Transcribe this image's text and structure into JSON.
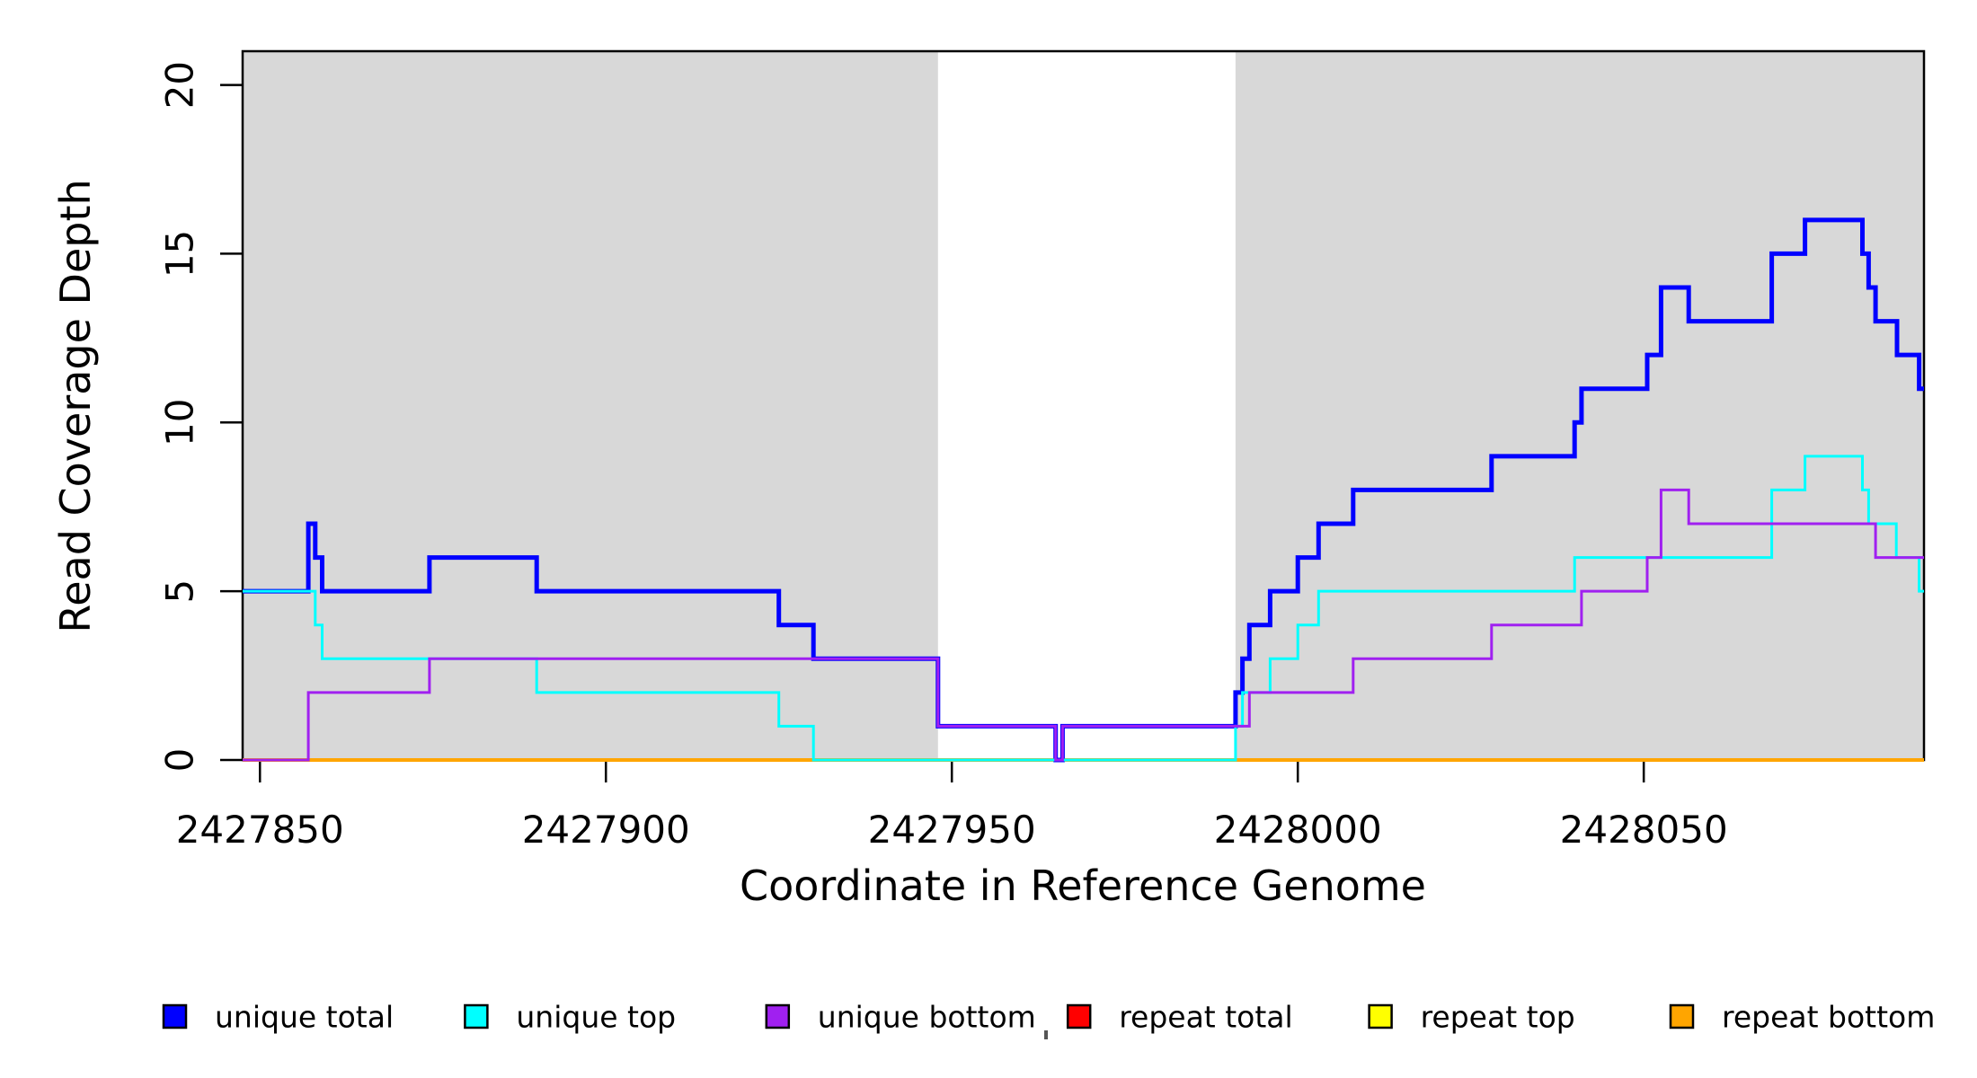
{
  "chart_data": {
    "type": "line",
    "subtype": "step-coverage-plot",
    "title": "",
    "xlabel": "Coordinate in Reference Genome",
    "ylabel": "Read Coverage Depth",
    "xlim": [
      2427847.5,
      2428090.5
    ],
    "ylim": [
      0,
      21.0
    ],
    "x_ticks": [
      2427850,
      2427900,
      2427950,
      2428000,
      2428050
    ],
    "y_ticks": [
      0,
      5,
      10,
      15,
      20
    ],
    "grid": false,
    "legend_position": "bottom",
    "shaded_regions": [
      {
        "name": "left-gray-band",
        "x0": 2427847.5,
        "x1": 2427948.0,
        "color": "#D8D8D8"
      },
      {
        "name": "right-gray-band",
        "x0": 2427991.0,
        "x1": 2428090.5,
        "color": "#D8D8D8"
      }
    ],
    "series": [
      {
        "name": "repeat total",
        "color": "#FF0000",
        "width": 4,
        "breakpoints": [
          [
            2427847.5,
            0
          ]
        ]
      },
      {
        "name": "repeat top",
        "color": "#FFFF00",
        "width": 4,
        "breakpoints": [
          [
            2427847.5,
            0
          ]
        ]
      },
      {
        "name": "repeat bottom",
        "color": "#FFA500",
        "width": 4,
        "breakpoints": [
          [
            2427847.5,
            0
          ]
        ]
      },
      {
        "name": "unique total",
        "color": "#0000FF",
        "width": 5,
        "breakpoints": [
          [
            2427847.5,
            5
          ],
          [
            2427857,
            7
          ],
          [
            2427858,
            6
          ],
          [
            2427859,
            5
          ],
          [
            2427874.5,
            6
          ],
          [
            2427890,
            5
          ],
          [
            2427925,
            4
          ],
          [
            2427930,
            3
          ],
          [
            2427948,
            1
          ],
          [
            2427965,
            0
          ],
          [
            2427966,
            1
          ],
          [
            2427991,
            2
          ],
          [
            2427992,
            3
          ],
          [
            2427993,
            4
          ],
          [
            2427996,
            5
          ],
          [
            2428000,
            6
          ],
          [
            2428003,
            7
          ],
          [
            2428008,
            8
          ],
          [
            2428028,
            9
          ],
          [
            2428040,
            10
          ],
          [
            2428041,
            11
          ],
          [
            2428050.5,
            12
          ],
          [
            2428052.5,
            14
          ],
          [
            2428056.5,
            13
          ],
          [
            2428068.5,
            15
          ],
          [
            2428073.3,
            16
          ],
          [
            2428081.6,
            15
          ],
          [
            2428082.5,
            14
          ],
          [
            2428083.5,
            13
          ],
          [
            2428086.6,
            12
          ],
          [
            2428089.8,
            11
          ]
        ]
      },
      {
        "name": "unique top",
        "color": "#00FFFF",
        "width": 3,
        "breakpoints": [
          [
            2427847.5,
            5
          ],
          [
            2427858,
            4
          ],
          [
            2427859,
            3
          ],
          [
            2427890,
            2
          ],
          [
            2427925,
            1
          ],
          [
            2427930,
            0
          ],
          [
            2427991,
            1
          ],
          [
            2427992,
            2
          ],
          [
            2427996,
            3
          ],
          [
            2428000,
            4
          ],
          [
            2428003,
            5
          ],
          [
            2428040,
            6
          ],
          [
            2428068.5,
            8
          ],
          [
            2428073.3,
            9
          ],
          [
            2428081.6,
            8
          ],
          [
            2428082.5,
            7
          ],
          [
            2428086.5,
            6
          ],
          [
            2428089.8,
            5
          ]
        ]
      },
      {
        "name": "unique bottom",
        "color": "#A020F0",
        "width": 3,
        "breakpoints": [
          [
            2427847.5,
            0
          ],
          [
            2427857,
            2
          ],
          [
            2427874.5,
            3
          ],
          [
            2427948,
            1
          ],
          [
            2427965,
            0
          ],
          [
            2427966,
            1
          ],
          [
            2427993,
            2
          ],
          [
            2428008,
            3
          ],
          [
            2428028,
            4
          ],
          [
            2428041,
            5
          ],
          [
            2428050.5,
            6
          ],
          [
            2428052.5,
            8
          ],
          [
            2428056.5,
            7
          ],
          [
            2428083.5,
            6
          ]
        ]
      }
    ],
    "legend": [
      {
        "label": "unique total",
        "color": "#0000FF"
      },
      {
        "label": "unique top",
        "color": "#00FFFF"
      },
      {
        "label": "unique bottom",
        "color": "#A020F0"
      },
      {
        "label": "repeat total",
        "color": "#FF0000"
      },
      {
        "label": "repeat top",
        "color": "#FFFF00"
      },
      {
        "label": "repeat bottom",
        "color": "#FFA500"
      }
    ]
  },
  "axis": {
    "x_title": "Coordinate in Reference Genome",
    "y_title": "Read Coverage Depth"
  }
}
